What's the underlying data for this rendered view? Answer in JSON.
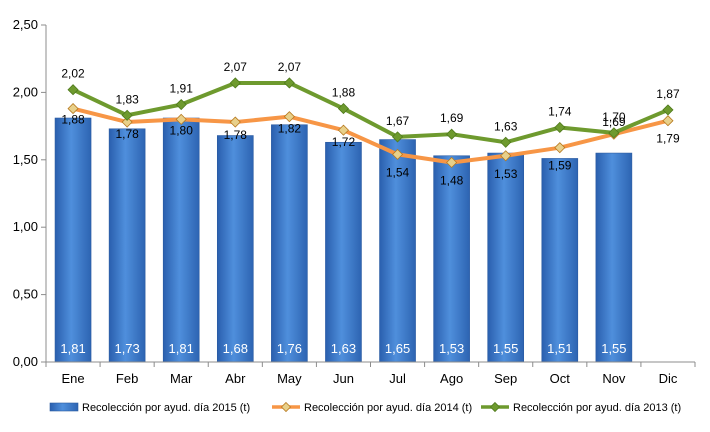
{
  "chart_data": {
    "type": "bar",
    "categories": [
      "Ene",
      "Feb",
      "Mar",
      "Abr",
      "May",
      "Jun",
      "Jul",
      "Ago",
      "Sep",
      "Oct",
      "Nov",
      "Dic"
    ],
    "ylim": [
      0,
      2.5
    ],
    "yticks": [
      "0,00",
      "0,50",
      "1,00",
      "1,50",
      "2,00",
      "2,50"
    ],
    "grid": false,
    "legend_position": "bottom",
    "series": [
      {
        "name": "Recolección por ayud. día 2015 (t)",
        "type": "bar",
        "color": "#3f7fd0",
        "values": [
          1.81,
          1.73,
          1.81,
          1.68,
          1.76,
          1.63,
          1.65,
          1.53,
          1.55,
          1.51,
          1.55,
          null
        ],
        "labels": [
          "1,81",
          "1,73",
          "1,81",
          "1,68",
          "1,76",
          "1,63",
          "1,65",
          "1,53",
          "1,55",
          "1,51",
          "1,55",
          ""
        ]
      },
      {
        "name": "Recolección por ayud. día 2014 (t)",
        "type": "line",
        "color": "#f79646",
        "marker_color": "#e8d08a",
        "values": [
          1.88,
          1.78,
          1.8,
          1.78,
          1.82,
          1.72,
          1.54,
          1.48,
          1.53,
          1.59,
          1.69,
          1.79
        ],
        "labels": [
          "1,88",
          "1,78",
          "1,80",
          "1,78",
          "1,82",
          "1,72",
          "1,54",
          "1,48",
          "1,53",
          "1,59",
          "1,69",
          "1,79"
        ]
      },
      {
        "name": "Recolección por ayud. día 2013 (t)",
        "type": "line",
        "color": "#6e9a2e",
        "marker_color": "#6e9a2e",
        "values": [
          2.02,
          1.83,
          1.91,
          2.07,
          2.07,
          1.88,
          1.67,
          1.69,
          1.63,
          1.74,
          1.7,
          1.87
        ],
        "labels": [
          "2,02",
          "1,83",
          "1,91",
          "2,07",
          "2,07",
          "1,88",
          "1,67",
          "1,69",
          "1,63",
          "1,74",
          "1,70",
          "1,87"
        ]
      }
    ]
  }
}
